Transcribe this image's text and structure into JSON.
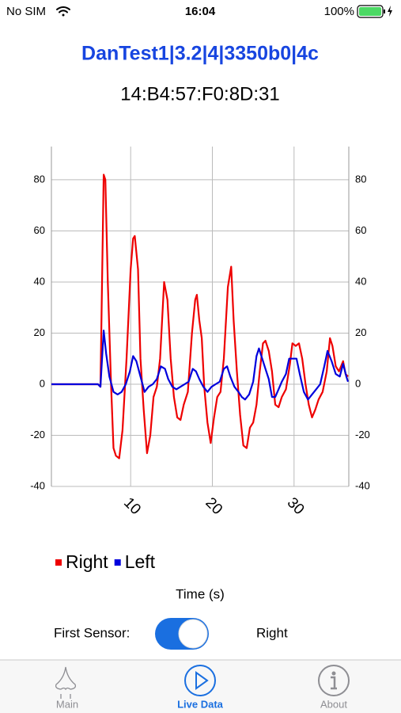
{
  "status_bar": {
    "carrier": "No SIM",
    "time": "16:04",
    "battery": "100%"
  },
  "header": {
    "title": "DanTest1|3.2|4|3350b0|4c",
    "address": "14:B4:57:F0:8D:31"
  },
  "chart_data": {
    "type": "line",
    "x_label": "Time (s)",
    "xlim": [
      0.3,
      36.7
    ],
    "xticks": [
      10,
      20,
      30
    ],
    "ylim": [
      -40,
      93
    ],
    "yticks": [
      -40,
      -20,
      0,
      20,
      40,
      60,
      80
    ],
    "grid": true,
    "legend": "bottom-left",
    "series": [
      {
        "name": "Right",
        "color": "#ee0000",
        "x": [
          0.3,
          4,
          5,
          6,
          6.3,
          6.7,
          6.9,
          7.2,
          7.6,
          7.9,
          8.2,
          8.6,
          9,
          9.5,
          10,
          10.3,
          10.5,
          10.9,
          11.2,
          11.6,
          12,
          12.4,
          12.8,
          13.2,
          13.6,
          14.1,
          14.5,
          14.9,
          15.3,
          15.7,
          16.1,
          16.5,
          17,
          17.5,
          17.9,
          18.1,
          18.4,
          18.7,
          19,
          19.4,
          19.8,
          20.2,
          20.6,
          21,
          21.4,
          21.9,
          22.3,
          22.6,
          23,
          23.4,
          23.8,
          24.2,
          24.6,
          25,
          25.4,
          25.8,
          26.2,
          26.5,
          26.9,
          27.3,
          27.7,
          28.1,
          28.5,
          29,
          29.5,
          29.8,
          30.2,
          30.6,
          31,
          31.4,
          31.8,
          32.2,
          32.6,
          33,
          33.5,
          34,
          34.4,
          34.7,
          35.1,
          35.5,
          36,
          36.3,
          36.6
        ],
        "values": [
          0,
          0,
          0,
          0,
          -1,
          82,
          80,
          40,
          0,
          -25,
          -28,
          -29,
          -18,
          10,
          45,
          57,
          58,
          45,
          10,
          -10,
          -27,
          -20,
          -5,
          -1,
          10,
          40,
          33,
          10,
          -5,
          -13,
          -14,
          -8,
          -3,
          20,
          33,
          35,
          25,
          18,
          -1,
          -15,
          -23,
          -13,
          -5,
          -3,
          10,
          38,
          46,
          25,
          5,
          -12,
          -24,
          -25,
          -17,
          -15,
          -8,
          5,
          16,
          17,
          13,
          5,
          -8,
          -9,
          -5,
          -2,
          8,
          16,
          15,
          16,
          10,
          0,
          -8,
          -13,
          -10,
          -6,
          -3,
          5,
          18,
          15,
          7,
          5,
          9,
          4,
          3
        ]
      },
      {
        "name": "Left",
        "color": "#0000dd",
        "x": [
          0.3,
          4,
          5,
          6,
          6.3,
          6.7,
          7,
          7.4,
          7.9,
          8.4,
          8.9,
          9.4,
          9.9,
          10.3,
          10.7,
          11.2,
          11.7,
          12.2,
          12.7,
          13.2,
          13.7,
          14.2,
          14.6,
          15.1,
          15.6,
          16.1,
          16.6,
          17.1,
          17.6,
          18,
          18.4,
          18.9,
          19.4,
          19.9,
          20.4,
          20.9,
          21.4,
          21.8,
          22.2,
          22.7,
          23.2,
          23.6,
          24,
          24.5,
          25,
          25.4,
          25.7,
          26.1,
          26.5,
          26.9,
          27.3,
          27.7,
          28.1,
          28.5,
          29,
          29.4,
          29.9,
          30.3,
          30.7,
          31.2,
          31.7,
          32.2,
          32.7,
          33.2,
          33.7,
          34.1,
          34.6,
          35.1,
          35.6,
          36,
          36.4,
          36.6
        ],
        "values": [
          0,
          0,
          0,
          0,
          -1,
          21,
          12,
          3,
          -3,
          -4,
          -3,
          0,
          5,
          11,
          9,
          3,
          -3,
          -1,
          0,
          2,
          7,
          6,
          2,
          -1,
          -2,
          -1,
          0,
          1,
          6,
          5,
          2,
          -1,
          -3,
          -1,
          0,
          1,
          6,
          7,
          3,
          -1,
          -3,
          -5,
          -6,
          -4,
          1,
          11,
          14,
          10,
          6,
          2,
          -5,
          -5,
          -2,
          1,
          4,
          10,
          10,
          10,
          4,
          -3,
          -6,
          -4,
          -2,
          0,
          7,
          13,
          9,
          4,
          3,
          8,
          3,
          1
        ]
      }
    ]
  },
  "controls": {
    "label": "First Sensor:",
    "toggle_on": true,
    "value": "Right"
  },
  "tabs": [
    {
      "label": "Main",
      "active": false
    },
    {
      "label": "Live Data",
      "active": true
    },
    {
      "label": "About",
      "active": false
    }
  ]
}
